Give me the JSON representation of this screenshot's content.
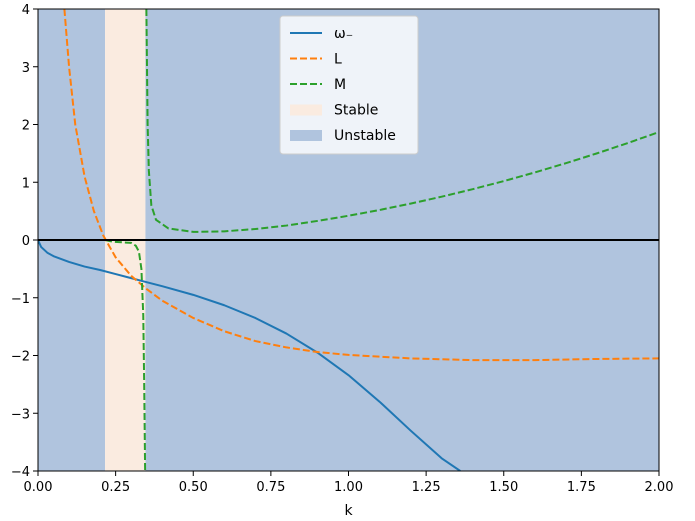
{
  "chart_data": {
    "type": "line",
    "title": "",
    "xlabel": "k",
    "ylabel": "",
    "xlim": [
      0,
      2
    ],
    "ylim": [
      -4,
      4
    ],
    "grid": false,
    "legend_position": "top-center",
    "x_ticks": [
      "0.00",
      "0.25",
      "0.50",
      "0.75",
      "1.00",
      "1.25",
      "1.50",
      "1.75",
      "2.00"
    ],
    "y_ticks": [
      "−4",
      "−3",
      "−2",
      "−1",
      "0",
      "1",
      "2",
      "3",
      "4"
    ],
    "x_tick_values": [
      0,
      0.25,
      0.5,
      0.75,
      1.0,
      1.25,
      1.5,
      1.75,
      2.0
    ],
    "y_tick_values": [
      -4,
      -3,
      -2,
      -1,
      0,
      1,
      2,
      3,
      4
    ],
    "reference_line": {
      "y": 0,
      "color": "#000000"
    },
    "regions": [
      {
        "name": "Unstable",
        "x_start": 0.0,
        "x_end": 0.216,
        "color": "#b0c4de"
      },
      {
        "name": "Stable",
        "x_start": 0.216,
        "x_end": 0.346,
        "color": "#faebe0"
      },
      {
        "name": "Unstable",
        "x_start": 0.346,
        "x_end": 2.0,
        "color": "#b0c4de"
      }
    ],
    "series": [
      {
        "name": "ω₋",
        "style": "solid",
        "color": "#1f77b4",
        "points": [
          [
            0.0,
            0.0
          ],
          [
            0.01,
            -0.12
          ],
          [
            0.03,
            -0.22
          ],
          [
            0.05,
            -0.28
          ],
          [
            0.1,
            -0.38
          ],
          [
            0.15,
            -0.46
          ],
          [
            0.2,
            -0.52
          ],
          [
            0.25,
            -0.59
          ],
          [
            0.3,
            -0.66
          ],
          [
            0.35,
            -0.73
          ],
          [
            0.4,
            -0.8
          ],
          [
            0.5,
            -0.95
          ],
          [
            0.6,
            -1.13
          ],
          [
            0.7,
            -1.35
          ],
          [
            0.8,
            -1.62
          ],
          [
            0.9,
            -1.95
          ],
          [
            1.0,
            -2.34
          ],
          [
            1.1,
            -2.8
          ],
          [
            1.2,
            -3.3
          ],
          [
            1.3,
            -3.78
          ],
          [
            1.36,
            -4.0
          ]
        ]
      },
      {
        "name": "L",
        "style": "dashed",
        "color": "#ff7f0e",
        "points": [
          [
            0.085,
            4.0
          ],
          [
            0.1,
            3.0
          ],
          [
            0.12,
            2.0
          ],
          [
            0.15,
            1.1
          ],
          [
            0.18,
            0.5
          ],
          [
            0.21,
            0.08
          ],
          [
            0.25,
            -0.3
          ],
          [
            0.3,
            -0.62
          ],
          [
            0.35,
            -0.85
          ],
          [
            0.4,
            -1.05
          ],
          [
            0.5,
            -1.35
          ],
          [
            0.6,
            -1.58
          ],
          [
            0.7,
            -1.75
          ],
          [
            0.8,
            -1.86
          ],
          [
            0.9,
            -1.94
          ],
          [
            1.0,
            -1.99
          ],
          [
            1.2,
            -2.05
          ],
          [
            1.4,
            -2.08
          ],
          [
            1.6,
            -2.08
          ],
          [
            1.8,
            -2.06
          ],
          [
            2.0,
            -2.05
          ]
        ]
      },
      {
        "name": "M",
        "style": "dashed",
        "color": "#2ca02c",
        "points": [
          [
            0.216,
            0.0
          ],
          [
            0.24,
            -0.03
          ],
          [
            0.27,
            -0.04
          ],
          [
            0.3,
            -0.05
          ],
          [
            0.315,
            -0.1
          ],
          [
            0.325,
            -0.2
          ],
          [
            0.333,
            -0.5
          ],
          [
            0.339,
            -1.3
          ],
          [
            0.342,
            -2.5
          ],
          [
            0.344,
            -3.5
          ],
          [
            0.345,
            -4.0
          ],
          null,
          [
            0.349,
            4.0
          ],
          [
            0.351,
            3.0
          ],
          [
            0.353,
            2.0
          ],
          [
            0.357,
            1.2
          ],
          [
            0.365,
            0.6
          ],
          [
            0.38,
            0.35
          ],
          [
            0.42,
            0.2
          ],
          [
            0.5,
            0.14
          ],
          [
            0.6,
            0.15
          ],
          [
            0.7,
            0.19
          ],
          [
            0.8,
            0.25
          ],
          [
            0.9,
            0.33
          ],
          [
            1.0,
            0.42
          ],
          [
            1.1,
            0.52
          ],
          [
            1.2,
            0.63
          ],
          [
            1.3,
            0.75
          ],
          [
            1.4,
            0.88
          ],
          [
            1.5,
            1.02
          ],
          [
            1.6,
            1.17
          ],
          [
            1.7,
            1.33
          ],
          [
            1.8,
            1.5
          ],
          [
            1.9,
            1.68
          ],
          [
            2.0,
            1.87
          ]
        ]
      }
    ],
    "legend": [
      {
        "label": "ω₋",
        "kind": "line",
        "style": "solid",
        "color": "#1f77b4"
      },
      {
        "label": "L",
        "kind": "line",
        "style": "dashed",
        "color": "#ff7f0e"
      },
      {
        "label": "M",
        "kind": "line",
        "style": "dashed",
        "color": "#2ca02c"
      },
      {
        "label": "Stable",
        "kind": "patch",
        "color": "#faebe0"
      },
      {
        "label": "Unstable",
        "kind": "patch",
        "color": "#b0c4de"
      }
    ]
  }
}
